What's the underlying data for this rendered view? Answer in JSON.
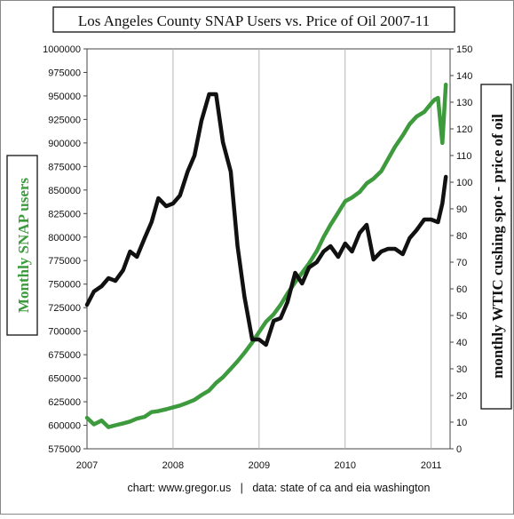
{
  "chart_data": {
    "type": "line",
    "title": "Los Angeles County SNAP Users vs. Price of Oil 2007-11",
    "ylabel_left": "Monthly SNAP users",
    "ylabel_right": "monthly WTIC cushing spot - price of oil",
    "credit": "chart: www.gregor.us   |   data: state of ca and eia washington",
    "x_ticks": [
      "2007",
      "2008",
      "2009",
      "2010",
      "2011"
    ],
    "y_left": {
      "min": 575000,
      "max": 1000000,
      "ticks": [
        575000,
        600000,
        625000,
        650000,
        675000,
        700000,
        725000,
        750000,
        775000,
        800000,
        825000,
        850000,
        875000,
        900000,
        925000,
        950000,
        975000,
        1000000
      ]
    },
    "y_right": {
      "min": 0,
      "max": 150,
      "ticks": [
        0,
        10,
        20,
        30,
        40,
        50,
        60,
        70,
        80,
        90,
        100,
        110,
        120,
        130,
        140,
        150
      ]
    },
    "grid": "vertical",
    "series": [
      {
        "name": "Monthly SNAP users",
        "axis": "left",
        "color": "#3d9a3d",
        "x": [
          2007.0,
          2007.08,
          2007.17,
          2007.25,
          2007.33,
          2007.42,
          2007.5,
          2007.58,
          2007.67,
          2007.75,
          2007.83,
          2007.92,
          2008.0,
          2008.08,
          2008.17,
          2008.25,
          2008.33,
          2008.42,
          2008.5,
          2008.58,
          2008.67,
          2008.75,
          2008.83,
          2008.92,
          2009.0,
          2009.08,
          2009.17,
          2009.25,
          2009.33,
          2009.42,
          2009.5,
          2009.58,
          2009.67,
          2009.75,
          2009.83,
          2009.92,
          2010.0,
          2010.08,
          2010.17,
          2010.25,
          2010.33,
          2010.42,
          2010.5,
          2010.58,
          2010.67,
          2010.75,
          2010.83,
          2010.92,
          2011.0,
          2011.04,
          2011.08,
          2011.13,
          2011.17
        ],
        "values": [
          608000,
          601000,
          605000,
          598000,
          600000,
          602000,
          604000,
          607000,
          609000,
          614000,
          615000,
          617000,
          619000,
          621000,
          624000,
          627000,
          632000,
          637000,
          645000,
          651000,
          660000,
          668000,
          677000,
          688000,
          699000,
          710000,
          718000,
          728000,
          740000,
          752000,
          762000,
          772000,
          785000,
          800000,
          813000,
          826000,
          838000,
          842000,
          848000,
          857000,
          862000,
          870000,
          883000,
          896000,
          908000,
          920000,
          928000,
          933000,
          942000,
          946000,
          948000,
          900000,
          962000
        ]
      },
      {
        "name": "monthly WTIC cushing spot - price of oil",
        "axis": "right",
        "color": "#111111",
        "x": [
          2007.0,
          2007.08,
          2007.17,
          2007.25,
          2007.33,
          2007.42,
          2007.5,
          2007.58,
          2007.67,
          2007.75,
          2007.83,
          2007.92,
          2008.0,
          2008.08,
          2008.17,
          2008.25,
          2008.33,
          2008.42,
          2008.5,
          2008.58,
          2008.67,
          2008.75,
          2008.83,
          2008.92,
          2009.0,
          2009.08,
          2009.17,
          2009.25,
          2009.33,
          2009.42,
          2009.5,
          2009.58,
          2009.67,
          2009.75,
          2009.83,
          2009.92,
          2010.0,
          2010.08,
          2010.17,
          2010.25,
          2010.33,
          2010.42,
          2010.5,
          2010.58,
          2010.67,
          2010.75,
          2010.83,
          2010.92,
          2011.0,
          2011.08,
          2011.13,
          2011.17
        ],
        "values": [
          54,
          59,
          61,
          64,
          63,
          67,
          74,
          72,
          79,
          85,
          94,
          91,
          92,
          95,
          104,
          110,
          123,
          133,
          133,
          115,
          104,
          76,
          57,
          41,
          41,
          39,
          48,
          49,
          55,
          66,
          62,
          68,
          70,
          74,
          76,
          72,
          77,
          74,
          81,
          84,
          71,
          74,
          75,
          75,
          73,
          79,
          82,
          86,
          86,
          85,
          92,
          102
        ]
      }
    ]
  }
}
